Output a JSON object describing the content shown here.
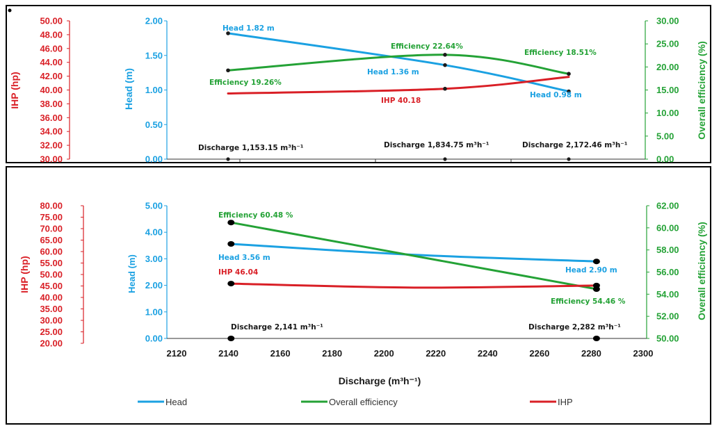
{
  "colors": {
    "head": "#1ba1e2",
    "efficiency": "#24a236",
    "ihp": "#d91f26",
    "text": "#1a1a1a",
    "axis": "#000000"
  },
  "chart_data": [
    {
      "type": "line",
      "axes": {
        "ihp": {
          "label": "IHP (hp)",
          "ticks": [
            "50.00",
            "48.00",
            "46.00",
            "44.00",
            "42.00",
            "40.00",
            "38.00",
            "36.00",
            "34.00",
            "32.00",
            "30.00"
          ],
          "range": [
            30,
            50
          ]
        },
        "head": {
          "label": "Head (m)",
          "ticks": [
            "2.00",
            "1.50",
            "1.00",
            "0.50",
            "0.00"
          ],
          "range": [
            0,
            2
          ]
        },
        "efficiency": {
          "label": "Overall efficiency (%)",
          "ticks": [
            "30.00",
            "25.00",
            "20.00",
            "15.00",
            "10.00",
            "5.00",
            "0.00"
          ],
          "range": [
            0,
            30
          ]
        }
      },
      "series": [
        {
          "key": "head",
          "values": [
            1.82,
            1.36,
            0.98
          ]
        },
        {
          "key": "efficiency",
          "values": [
            19.26,
            22.64,
            18.51
          ]
        },
        {
          "key": "ihp",
          "values": [
            39.5,
            40.18,
            41.9
          ]
        }
      ],
      "annotations": {
        "head": [
          "Head 1.82 m",
          "Head 1.36 m",
          "Head 0.98 m"
        ],
        "efficiency": [
          "Efficiency 19.26%",
          "Efficiency 22.64%",
          "Efficiency 18.51%"
        ],
        "ihp": [
          "IHP 40.18"
        ],
        "discharge": [
          "Discharge 1,153.15 m³h⁻¹",
          "Discharge 1,834.75 m³h⁻¹",
          "Discharge 2,172.46 m³h⁻¹"
        ]
      }
    },
    {
      "type": "line",
      "x": {
        "label": "Discharge (m³h⁻¹)",
        "ticks": [
          "2120",
          "2140",
          "2160",
          "2180",
          "2200",
          "2220",
          "2240",
          "2260",
          "2280",
          "2300"
        ],
        "range": [
          2120,
          2300
        ]
      },
      "axes": {
        "ihp": {
          "label": "IHP (hp)",
          "ticks": [
            "80.00",
            "75.00",
            "70.00",
            "65.00",
            "60.00",
            "55.00",
            "50.00",
            "45.00",
            "40.00",
            "35.00",
            "30.00",
            "25.00",
            "20.00"
          ],
          "range": [
            20,
            80
          ]
        },
        "head": {
          "label": "Head (m)",
          "ticks": [
            "5.00",
            "4.00",
            "3.00",
            "2.00",
            "1.00",
            "0.00"
          ],
          "range": [
            0,
            5
          ]
        },
        "efficiency": {
          "label": "Overall efficiency (%)",
          "ticks": [
            "62.00",
            "60.00",
            "58.00",
            "56.00",
            "54.00",
            "52.00",
            "50.00"
          ],
          "range": [
            50,
            62
          ]
        }
      },
      "series": [
        {
          "key": "head",
          "x": [
            2141,
            2282
          ],
          "values": [
            3.56,
            2.9
          ]
        },
        {
          "key": "efficiency",
          "x": [
            2141,
            2282
          ],
          "values": [
            60.48,
            54.46
          ]
        },
        {
          "key": "ihp",
          "x": [
            2141,
            2282
          ],
          "values": [
            46.04,
            45.2
          ]
        }
      ],
      "annotations": {
        "head": [
          "Head 3.56 m",
          "Head 2.90 m"
        ],
        "efficiency": [
          "Efficiency 60.48 %",
          "Efficiency 54.46 %"
        ],
        "ihp": [
          "IHP 46.04"
        ],
        "discharge": [
          "Discharge 2,141 m³h⁻¹",
          "Discharge 2,282 m³h⁻¹"
        ]
      },
      "legend": [
        "Head",
        "Overall efficiency",
        "IHP"
      ]
    }
  ]
}
